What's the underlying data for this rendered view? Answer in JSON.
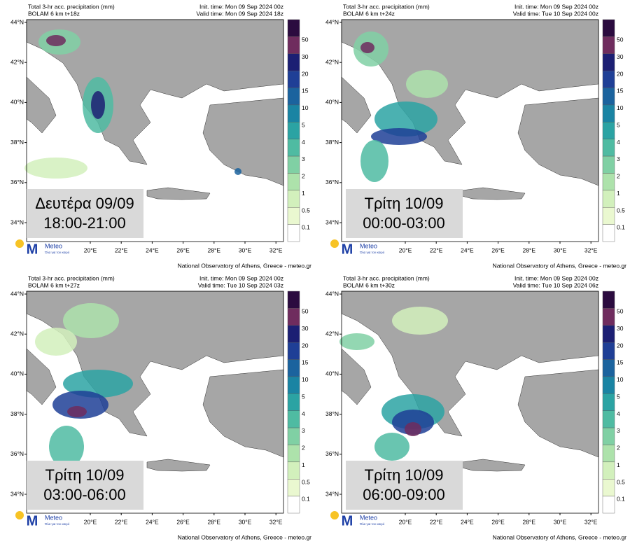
{
  "panels": [
    {
      "title": "Total 3-hr acc. precipitation (mm)",
      "model": "BOLAM 6 km t+18z",
      "init": "Init. time: Mon 09 Sep 2024 00z",
      "valid": "Valid time: Mon 09 Sep 2024 18z",
      "day": "Δευτέρα 09/09",
      "hours": "18:00-21:00"
    },
    {
      "title": "Total 3-hr acc. precipitation (mm)",
      "model": "BOLAM 6 km t+24z",
      "init": "Init. time: Mon 09 Sep 2024 00z",
      "valid": "Valid time: Tue 10 Sep 2024 00z",
      "day": "Τρίτη 10/09",
      "hours": "00:00-03:00"
    },
    {
      "title": "Total 3-hr acc. precipitation (mm)",
      "model": "BOLAM 6 km t+27z",
      "init": "Init. time: Mon 09 Sep 2024 00z",
      "valid": "Valid time: Tue 10 Sep 2024 03z",
      "day": "Τρίτη 10/09",
      "hours": "03:00-06:00"
    },
    {
      "title": "Total 3-hr acc. precipitation (mm)",
      "model": "BOLAM 6 km t+30z",
      "init": "Init. time: Mon 09 Sep 2024 00z",
      "valid": "Valid time: Tue 10 Sep 2024 06z",
      "day": "Τρίτη 10/09",
      "hours": "06:00-09:00"
    }
  ],
  "lat_labels": [
    "44°N",
    "42°N",
    "40°N",
    "38°N",
    "36°N",
    "34°N"
  ],
  "lon_labels": [
    "20°E",
    "22°E",
    "24°E",
    "26°E",
    "28°E",
    "30°E",
    "32°E"
  ],
  "colorbar_labels": [
    "50",
    "30",
    "20",
    "15",
    "10",
    "5",
    "4",
    "3",
    "2",
    "1",
    "0.5",
    "0.1"
  ],
  "logo": {
    "name": "Meteo",
    "slogan": "Όλα για τον καιρό"
  },
  "footer": "National Observatory of Athens, Greece - meteo.gr"
}
